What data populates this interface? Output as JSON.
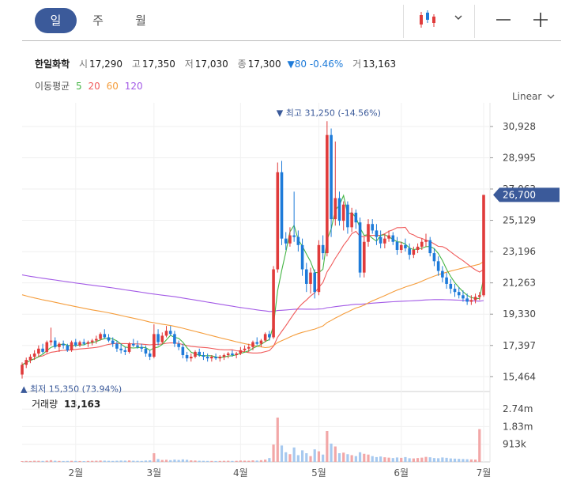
{
  "tabs": [
    {
      "label": "일",
      "active": true
    },
    {
      "label": "주",
      "active": false
    },
    {
      "label": "월",
      "active": false
    }
  ],
  "toolbar": {
    "chart_type_icon": "candlestick-icon",
    "dropdown_icon": "chevron-down-icon",
    "zoom_out_icon": "minus-icon",
    "zoom_in_icon": "plus-icon"
  },
  "quote": {
    "name": "한일화학",
    "open_label": "시",
    "open": "17,290",
    "high_label": "고",
    "high": "17,350",
    "low_label": "저",
    "low": "17,030",
    "close_label": "종",
    "close": "17,300",
    "change": "▼80 -0.46%",
    "volume_label": "거",
    "volume": "13,163"
  },
  "moving_average": {
    "label": "이동평균",
    "periods": [
      "5",
      "20",
      "60",
      "120"
    ]
  },
  "scale_mode": "Linear",
  "volume_panel": {
    "label": "거래량",
    "value": "13,163"
  },
  "colors": {
    "up": "#e03b3b",
    "down": "#1e7bd9",
    "ma5": "#44b544",
    "ma20": "#f05a5a",
    "ma60": "#f59d3c",
    "ma120": "#a35ae6",
    "badge": "#3b5a9a",
    "accent": "#3b5a9a"
  },
  "chart_data": {
    "type": "candlestick",
    "x_ticks": [
      "2월",
      "3월",
      "4월",
      "5월",
      "6월",
      "7월"
    ],
    "y_ticks": [
      "30,928",
      "28,995",
      "27,063",
      "25,129",
      "23,196",
      "21,263",
      "19,330",
      "17,397",
      "15,464"
    ],
    "y_tick_values": [
      30928,
      28995,
      27063,
      25129,
      23196,
      21263,
      19330,
      17397,
      15464
    ],
    "ylim": [
      14600,
      31900
    ],
    "last_price_label": "26,700",
    "last_price": 26700,
    "max_label": "최고 31,250 (-14.56%)",
    "min_label": "최저 15,350 (73.94%)",
    "volume_ticks": [
      "2.74m",
      "1.83m",
      "913k"
    ],
    "volume_tick_values": [
      2740000,
      1830000,
      913000
    ],
    "volume_max": 3650000,
    "month_index": [
      13,
      32,
      53,
      72,
      92,
      112
    ],
    "candles": [
      [
        15600,
        16350,
        15350,
        16200
      ],
      [
        16200,
        16650,
        16000,
        16500
      ],
      [
        16500,
        16850,
        16300,
        16700
      ],
      [
        16700,
        17100,
        16500,
        16900
      ],
      [
        16900,
        17400,
        16700,
        17200
      ],
      [
        17200,
        17500,
        16900,
        17000
      ],
      [
        17000,
        17700,
        16900,
        17600
      ],
      [
        17600,
        18500,
        17400,
        17700
      ],
      [
        17700,
        17900,
        17200,
        17300
      ],
      [
        17300,
        17600,
        17000,
        17500
      ],
      [
        17500,
        17700,
        17200,
        17400
      ],
      [
        17400,
        17500,
        17000,
        17100
      ],
      [
        17100,
        17700,
        17000,
        17600
      ],
      [
        17600,
        17800,
        17300,
        17400
      ],
      [
        17400,
        17700,
        17300,
        17600
      ],
      [
        17600,
        17800,
        17400,
        17500
      ],
      [
        17500,
        17700,
        17300,
        17600
      ],
      [
        17600,
        17800,
        17400,
        17700
      ],
      [
        17700,
        18000,
        17500,
        17800
      ],
      [
        17800,
        18200,
        17700,
        18100
      ],
      [
        18100,
        18400,
        17800,
        17900
      ],
      [
        17900,
        18100,
        17600,
        17700
      ],
      [
        17700,
        17900,
        17300,
        17500
      ],
      [
        17500,
        17700,
        17000,
        17200
      ],
      [
        17200,
        17500,
        16900,
        17100
      ],
      [
        17100,
        17300,
        16800,
        17000
      ],
      [
        17000,
        17600,
        16900,
        17500
      ],
      [
        17500,
        17800,
        17300,
        17400
      ],
      [
        17400,
        17700,
        17200,
        17300
      ],
      [
        17300,
        17500,
        17000,
        17200
      ],
      [
        17200,
        17400,
        16700,
        16900
      ],
      [
        16900,
        17100,
        16500,
        16700
      ],
      [
        16700,
        18700,
        16600,
        18100
      ],
      [
        18100,
        18400,
        17400,
        17600
      ],
      [
        17600,
        18200,
        17500,
        18000
      ],
      [
        18000,
        18600,
        17900,
        18300
      ],
      [
        18300,
        18600,
        18000,
        18100
      ],
      [
        18100,
        18300,
        17300,
        17500
      ],
      [
        17500,
        17700,
        17100,
        17300
      ],
      [
        17300,
        17500,
        16600,
        16800
      ],
      [
        16800,
        17000,
        16400,
        16600
      ],
      [
        16600,
        16900,
        16400,
        16700
      ],
      [
        16700,
        17100,
        16600,
        17000
      ],
      [
        17000,
        17200,
        16700,
        16800
      ],
      [
        16800,
        17000,
        16500,
        16700
      ],
      [
        16700,
        16900,
        16400,
        16600
      ],
      [
        16600,
        16800,
        16400,
        16700
      ],
      [
        16700,
        16900,
        16500,
        16600
      ],
      [
        16600,
        16800,
        16400,
        16700
      ],
      [
        16700,
        16900,
        16500,
        16800
      ],
      [
        16800,
        17000,
        16600,
        16900
      ],
      [
        16900,
        17100,
        16700,
        16800
      ],
      [
        16800,
        17000,
        16600,
        16900
      ],
      [
        16900,
        17300,
        16800,
        17100
      ],
      [
        17100,
        17400,
        17000,
        17200
      ],
      [
        17200,
        17500,
        17000,
        17300
      ],
      [
        17300,
        17700,
        17100,
        17600
      ],
      [
        17600,
        17900,
        17400,
        17500
      ],
      [
        17500,
        17800,
        17300,
        17700
      ],
      [
        17700,
        18200,
        17600,
        18100
      ],
      [
        18100,
        18300,
        17700,
        17900
      ],
      [
        17900,
        22300,
        17800,
        22100
      ],
      [
        22100,
        28700,
        21900,
        28100
      ],
      [
        28100,
        28800,
        23600,
        24000
      ],
      [
        24000,
        24400,
        23300,
        23700
      ],
      [
        23700,
        24700,
        23500,
        24200
      ],
      [
        24200,
        26900,
        23800,
        24100
      ],
      [
        24100,
        24500,
        23200,
        23600
      ],
      [
        23600,
        24000,
        21700,
        22100
      ],
      [
        22100,
        22500,
        20700,
        21200
      ],
      [
        21200,
        22200,
        20600,
        21900
      ],
      [
        21900,
        22100,
        20300,
        20700
      ],
      [
        20700,
        23900,
        20500,
        23600
      ],
      [
        23600,
        24200,
        22700,
        23100
      ],
      [
        23100,
        31250,
        22900,
        30400
      ],
      [
        30400,
        30800,
        24100,
        25200
      ],
      [
        25200,
        30000,
        24800,
        26500
      ],
      [
        26500,
        26900,
        24800,
        25100
      ],
      [
        25100,
        26300,
        24500,
        26100
      ],
      [
        26100,
        26300,
        24300,
        24700
      ],
      [
        24700,
        25900,
        24400,
        25600
      ],
      [
        25600,
        25800,
        24600,
        25000
      ],
      [
        25000,
        25300,
        21600,
        21900
      ],
      [
        21900,
        24100,
        21600,
        23800
      ],
      [
        23800,
        25200,
        23500,
        24900
      ],
      [
        24900,
        25200,
        24300,
        24500
      ],
      [
        24500,
        24900,
        23600,
        24100
      ],
      [
        24100,
        24500,
        23400,
        23700
      ],
      [
        23700,
        24300,
        23400,
        24000
      ],
      [
        24000,
        24500,
        23800,
        24200
      ],
      [
        24200,
        24400,
        23600,
        23800
      ],
      [
        23800,
        24100,
        23000,
        23300
      ],
      [
        23300,
        23800,
        23100,
        23600
      ],
      [
        23600,
        24000,
        23200,
        23400
      ],
      [
        23400,
        23700,
        22700,
        23000
      ],
      [
        23000,
        23500,
        22800,
        23300
      ],
      [
        23300,
        23700,
        23100,
        23500
      ],
      [
        23500,
        24000,
        23300,
        23800
      ],
      [
        23800,
        24300,
        23500,
        23900
      ],
      [
        23900,
        24100,
        22900,
        23100
      ],
      [
        23100,
        23400,
        22300,
        22600
      ],
      [
        22600,
        22900,
        21700,
        22000
      ],
      [
        22000,
        22300,
        21300,
        21600
      ],
      [
        21600,
        21900,
        20900,
        21200
      ],
      [
        21200,
        21500,
        20600,
        20900
      ],
      [
        20900,
        21200,
        20400,
        20700
      ],
      [
        20700,
        21000,
        20300,
        20500
      ],
      [
        20500,
        20800,
        20100,
        20300
      ],
      [
        20300,
        20600,
        19900,
        20100
      ],
      [
        20100,
        20500,
        19900,
        20200
      ],
      [
        20200,
        20600,
        20000,
        20400
      ],
      [
        20400,
        20700,
        20200,
        20500
      ],
      [
        20500,
        26700,
        20400,
        26700
      ]
    ],
    "volume": [
      40000,
      50000,
      45000,
      60000,
      55000,
      50000,
      65000,
      90000,
      60000,
      50000,
      45000,
      50000,
      55000,
      50000,
      45000,
      40000,
      50000,
      55000,
      60000,
      70000,
      65000,
      55000,
      50000,
      60000,
      70000,
      65000,
      75000,
      60000,
      55000,
      50000,
      70000,
      80000,
      450000,
      150000,
      100000,
      110000,
      90000,
      120000,
      100000,
      130000,
      110000,
      80000,
      70000,
      60000,
      55000,
      50000,
      50000,
      45000,
      50000,
      55000,
      60000,
      50000,
      55000,
      70000,
      65000,
      60000,
      80000,
      70000,
      90000,
      120000,
      200000,
      900000,
      2300000,
      850000,
      500000,
      400000,
      750000,
      350000,
      600000,
      450000,
      300000,
      650000,
      550000,
      380000,
      1600000,
      950000,
      800000,
      450000,
      480000,
      400000,
      350000,
      300000,
      500000,
      420000,
      380000,
      300000,
      250000,
      280000,
      240000,
      220000,
      200000,
      230000,
      210000,
      250000,
      190000,
      180000,
      200000,
      220000,
      260000,
      240000,
      200000,
      190000,
      230000,
      210000,
      180000,
      170000,
      160000,
      150000,
      140000,
      130000,
      120000,
      1700000
    ]
  }
}
